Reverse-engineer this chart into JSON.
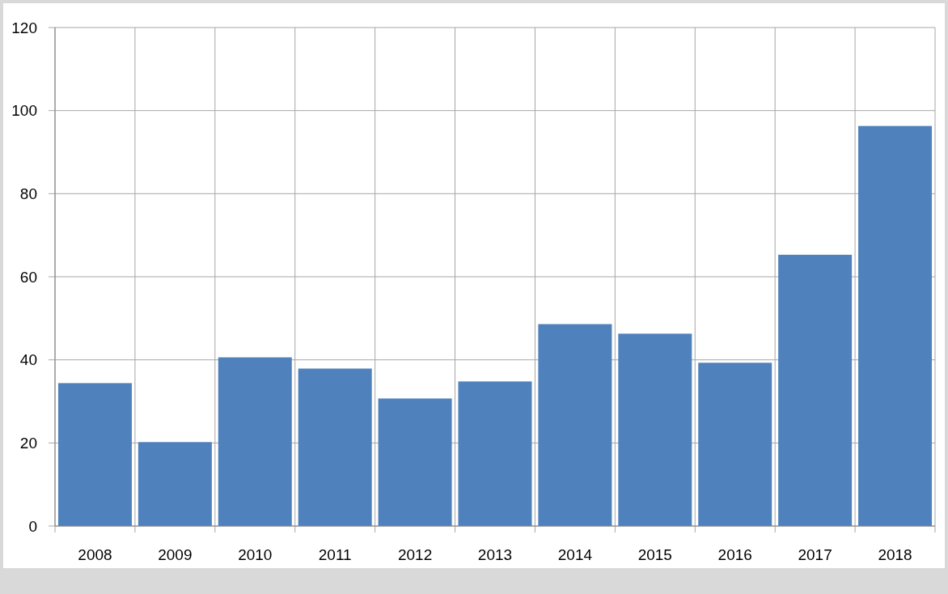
{
  "chart_data": {
    "type": "bar",
    "categories": [
      "2008",
      "2009",
      "2010",
      "2011",
      "2012",
      "2013",
      "2014",
      "2015",
      "2016",
      "2017",
      "2018"
    ],
    "values": [
      34.4,
      20.2,
      40.6,
      37.9,
      30.7,
      34.8,
      48.6,
      46.3,
      39.3,
      65.3,
      96.3
    ],
    "color": "#4f81bd",
    "ylim": [
      0,
      120
    ],
    "yticks": [
      0,
      20,
      40,
      60,
      80,
      100,
      120
    ],
    "grid": true
  }
}
